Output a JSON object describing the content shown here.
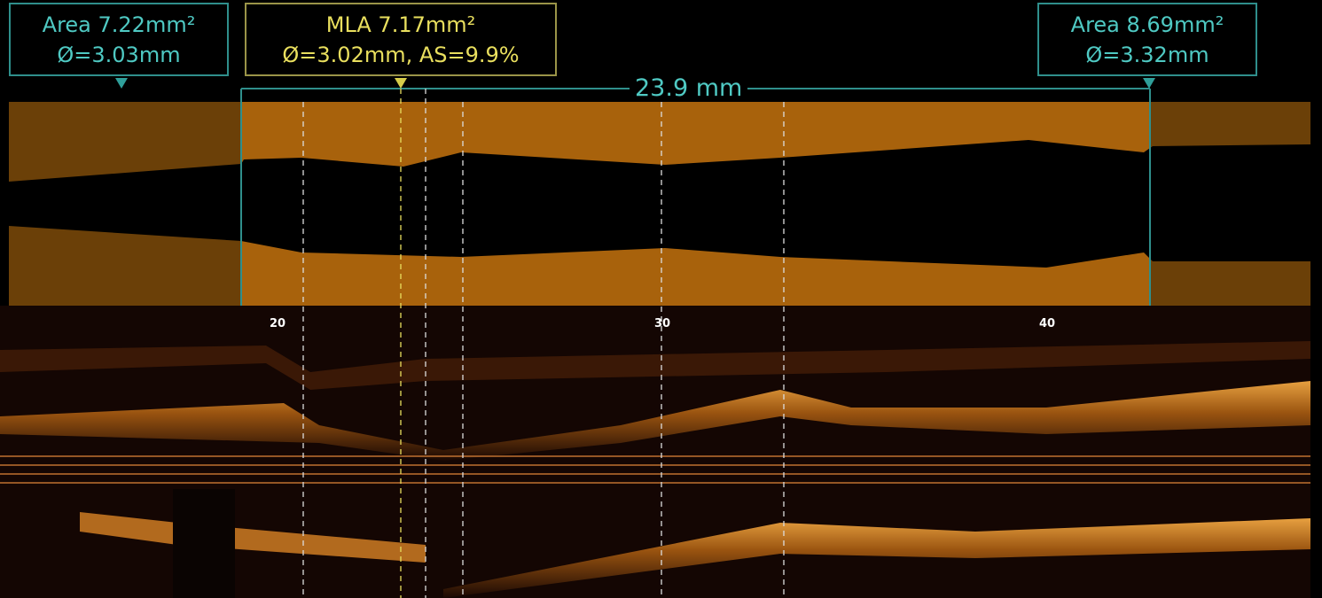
{
  "measurements": {
    "proximal": {
      "area": "Area 7.22mm²",
      "diameter": "Ø=3.03mm"
    },
    "mla": {
      "area": "MLA 7.17mm²",
      "detail": "Ø=3.02mm, AS=9.9%"
    },
    "distal": {
      "area": "Area 8.69mm²",
      "diameter": "Ø=3.32mm"
    },
    "length": "23.9 mm"
  },
  "axis": {
    "ticks": [
      "20",
      "30",
      "40"
    ]
  }
}
